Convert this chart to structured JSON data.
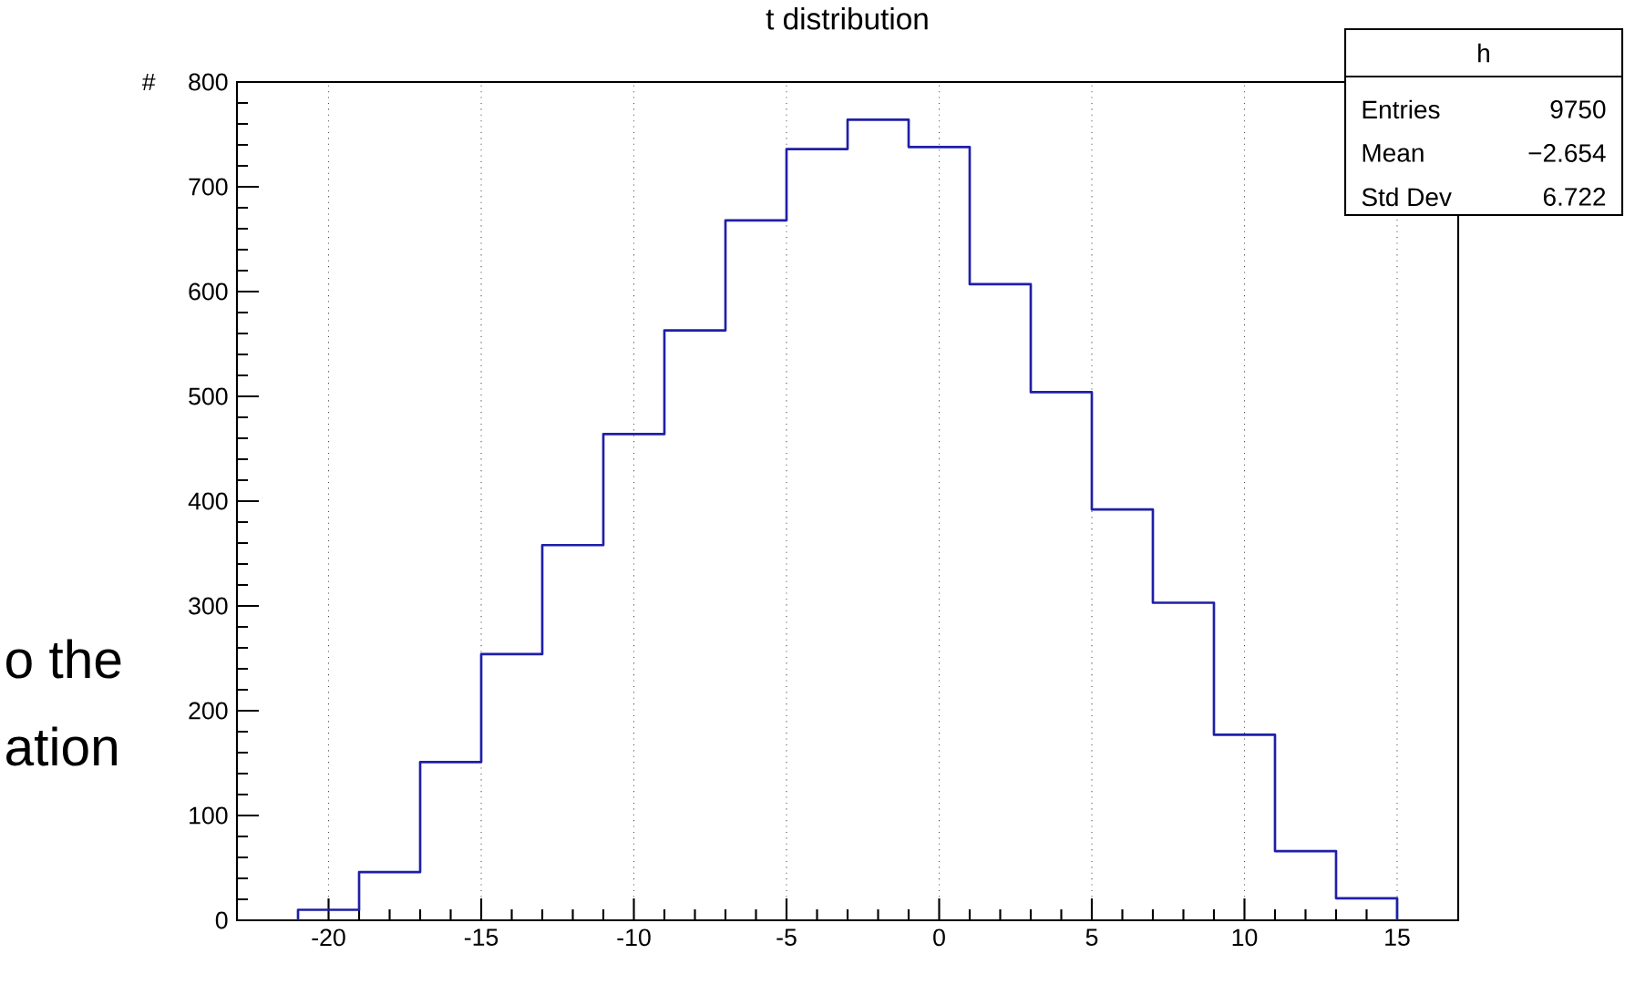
{
  "chart_data": {
    "type": "histogram",
    "title": "t distribution",
    "ylabel": "#",
    "bins": [
      -21,
      -19,
      -17,
      -15,
      -13,
      -11,
      -9,
      -7,
      -5,
      -3,
      -1,
      1,
      3,
      5,
      7,
      9,
      11,
      13,
      15
    ],
    "values": [
      10,
      46,
      151,
      254,
      358,
      464,
      563,
      668,
      736,
      764,
      738,
      607,
      504,
      392,
      303,
      177,
      66,
      21
    ],
    "color": "#1f1fa8",
    "xlim": [
      -23,
      17
    ],
    "xticks": [
      -20,
      -15,
      -10,
      -5,
      0,
      5,
      10,
      15
    ],
    "ylim": [
      0,
      800
    ],
    "yticks": [
      0,
      100,
      200,
      300,
      400,
      500,
      600,
      700,
      800
    ],
    "grid": "x",
    "annotations": [
      "o the",
      "ation",
      "h",
      "Entries",
      "9750",
      "Mean",
      "−2.654",
      "Std Dev",
      "6.722"
    ]
  }
}
